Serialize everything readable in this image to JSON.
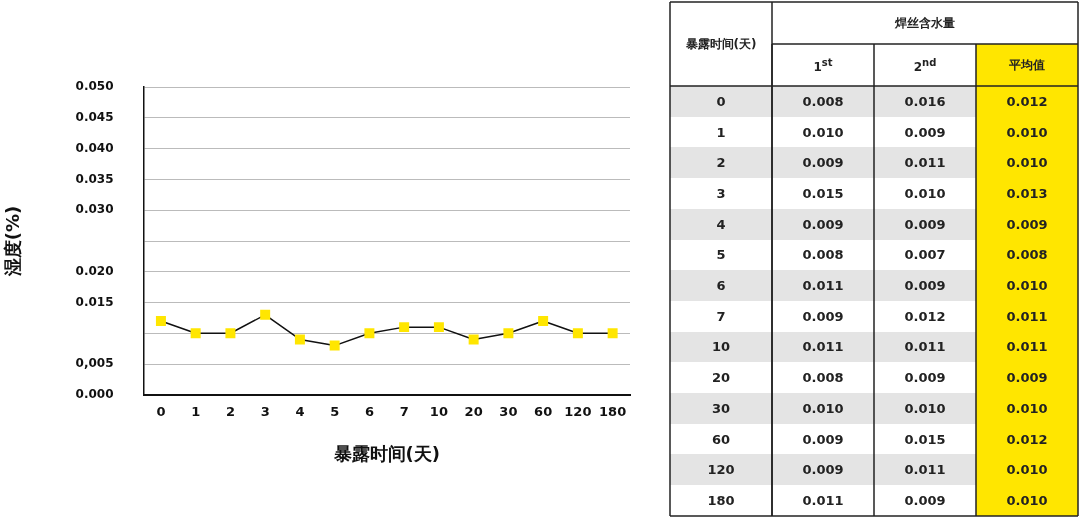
{
  "chart_data": [
    {
      "type": "line",
      "xlabel": "暴露时间(天)",
      "ylabel": "湿度(%)",
      "categories": [
        "0",
        "1",
        "2",
        "3",
        "4",
        "5",
        "6",
        "7",
        "10",
        "20",
        "30",
        "60",
        "120",
        "180"
      ],
      "series": [
        {
          "color": "#ffe600",
          "values": [
            0.012,
            0.01,
            0.01,
            0.013,
            0.009,
            0.008,
            0.01,
            0.011,
            0.011,
            0.009,
            0.01,
            0.012,
            0.01,
            0.01
          ]
        }
      ],
      "ylim": [
        0,
        0.05
      ],
      "yticks": [
        {
          "value": 0,
          "label": "0.000"
        },
        {
          "value": 0.005,
          "label": "0,005"
        },
        {
          "value": 0.01,
          "label": null
        },
        0.015,
        {
          "value": 0.02,
          "label": "0.020"
        },
        {
          "value": 0.025,
          "label": null
        },
        {
          "value": 0.03,
          "label": "0.030"
        },
        0.035,
        {
          "value": 0.04,
          "label": "0.040"
        },
        0.045,
        {
          "value": 0.05,
          "label": "0.050"
        }
      ],
      "grid": "y",
      "marker": "square",
      "line_style": "solid",
      "legend": false
    },
    {
      "type": "heatmap",
      "title": "焊丝含水量",
      "ylabel": "暴露时间(天)",
      "categories": [
        "1$^{st}$",
        "2$^{nd}$",
        "平均值"
      ],
      "y_categories": [
        "0",
        "1",
        "2",
        "3",
        "4",
        "5",
        "6",
        "7",
        "10",
        "20",
        "30",
        "60",
        "120",
        "180"
      ],
      "cells": [
        [
          0.008,
          0.016,
          0.012
        ],
        [
          0.01,
          0.009,
          0.01
        ],
        [
          0.009,
          0.011,
          0.01
        ],
        [
          0.015,
          0.01,
          0.013
        ],
        [
          0.009,
          0.009,
          0.009
        ],
        [
          0.008,
          0.007,
          0.008
        ],
        [
          0.011,
          0.009,
          0.01
        ],
        [
          0.009,
          0.012,
          0.011
        ],
        [
          0.011,
          0.011,
          0.011
        ],
        [
          0.008,
          0.009,
          0.009
        ],
        [
          0.01,
          0.01,
          0.01
        ],
        [
          0.009,
          0.015,
          0.012
        ],
        [
          0.009,
          0.011,
          0.01
        ],
        [
          0.011,
          0.009,
          0.01
        ]
      ],
      "cell_labels": [
        [
          "0.008",
          "0.016",
          "0.012"
        ],
        [
          "0.010",
          "0.009",
          "0.010"
        ],
        [
          "0.009",
          "0.011",
          "0.010"
        ],
        [
          "0.015",
          "0.010",
          "0.013"
        ],
        [
          "0.009",
          "0.009",
          "0.009"
        ],
        [
          "0.008",
          "0.007",
          "0.008"
        ],
        [
          "0.011",
          "0.009",
          "0.010"
        ],
        [
          "0.009",
          "0.012",
          "0.011"
        ],
        [
          "0.011",
          "0.011",
          "0.011"
        ],
        [
          "0.008",
          "0.009",
          "0.009"
        ],
        [
          "0.010",
          "0.010",
          "0.010"
        ],
        [
          "0.009",
          "0.015",
          "0.012"
        ],
        [
          "0.009",
          "0.011",
          "0.010"
        ],
        [
          "0.011",
          "0.009",
          "0.010"
        ]
      ]
    }
  ]
}
